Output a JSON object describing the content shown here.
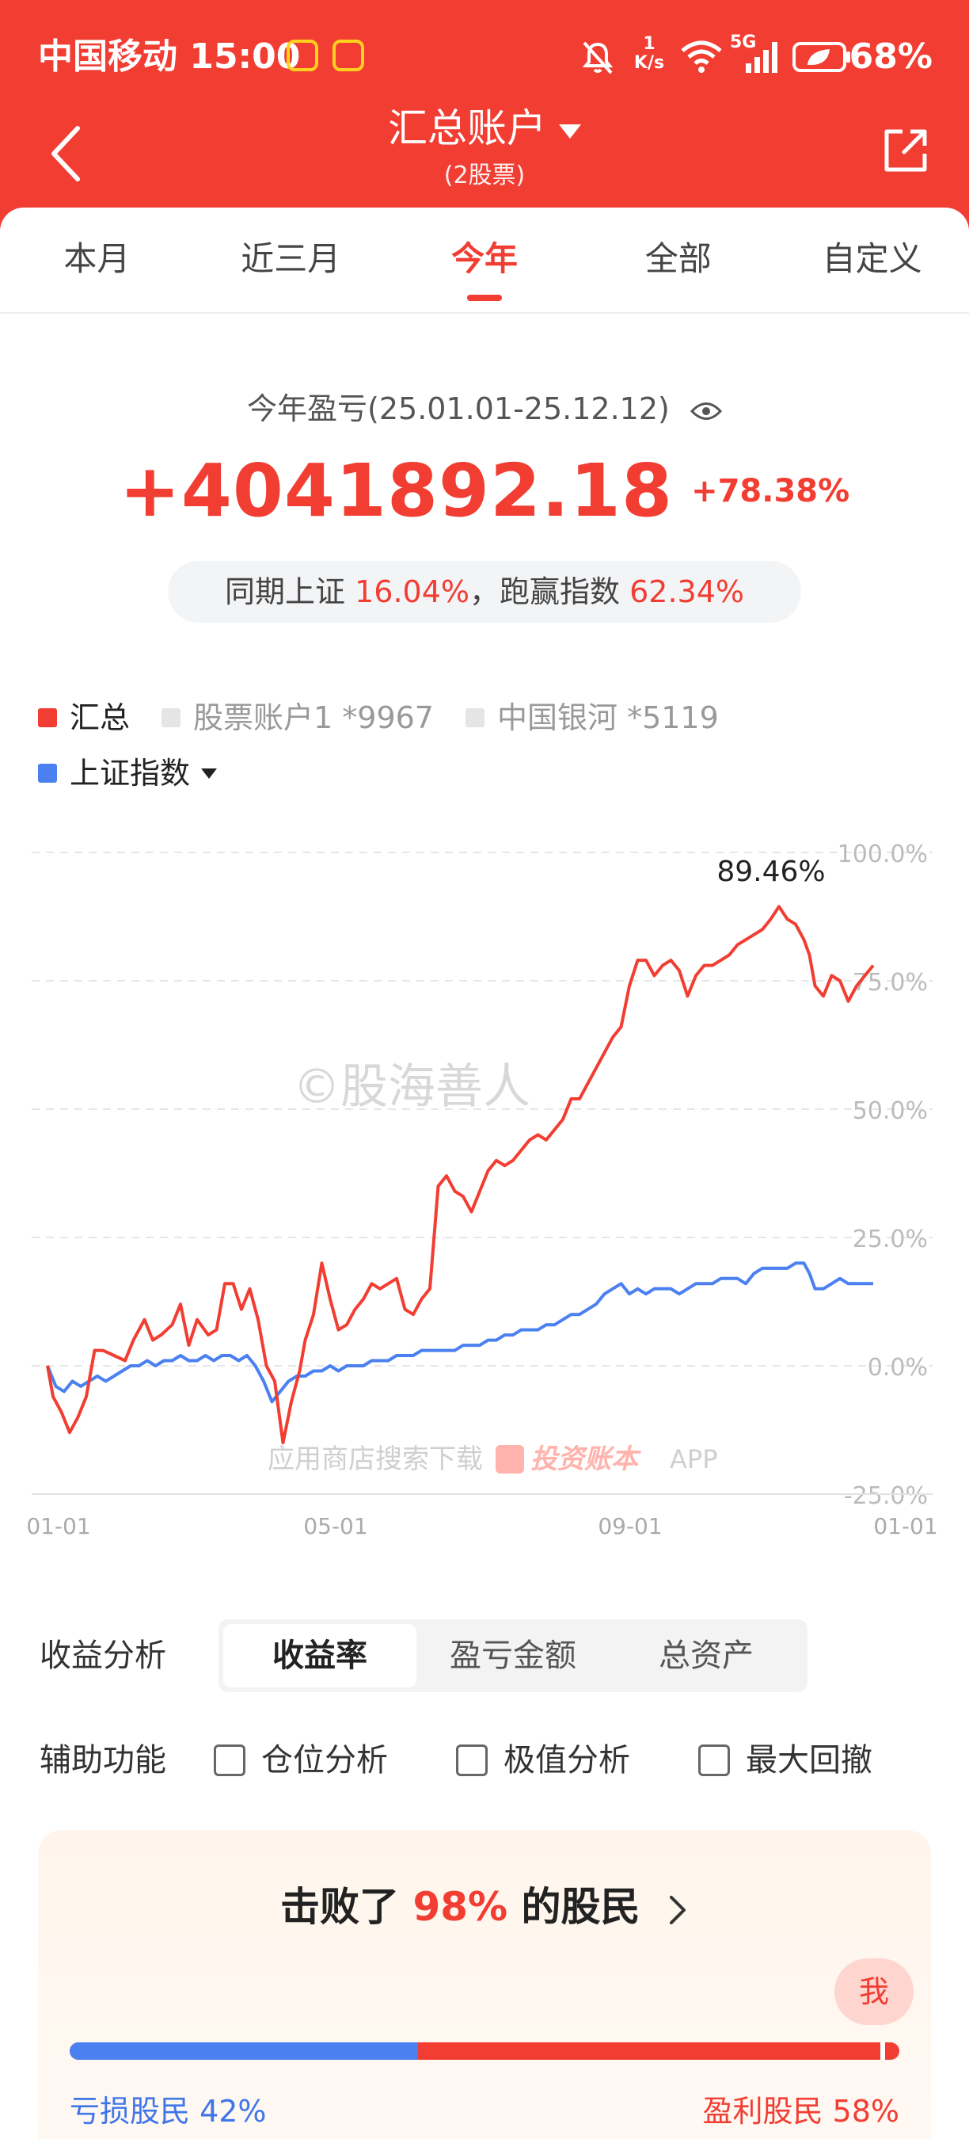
{
  "status_bar": {
    "carrier": "中国移动",
    "time": "15:00",
    "net_speed_value": "1",
    "net_speed_unit": "K/s",
    "network": "5G",
    "battery": "68%"
  },
  "header": {
    "title": "汇总账户",
    "subtitle": "(2股票)",
    "color": "#f23d32"
  },
  "tabs": [
    {
      "label": "本月",
      "active": false
    },
    {
      "label": "近三月",
      "active": false
    },
    {
      "label": "今年",
      "active": true
    },
    {
      "label": "全部",
      "active": false
    },
    {
      "label": "自定义",
      "active": false
    }
  ],
  "summary": {
    "period_label": "今年盈亏(25.01.01-25.12.12)",
    "profit_amount": "+4041892.18",
    "profit_pct": "+78.38%",
    "compare_prefix": "同期上证",
    "index_return": "16.04%",
    "compare_middle": "，跑赢指数",
    "outperform": "62.34%"
  },
  "legend": {
    "items": [
      {
        "label": "汇总",
        "color": "#f23d32",
        "active": true
      },
      {
        "label": "股票账户1 *9967",
        "color": "#e5e5e5",
        "active": false
      },
      {
        "label": "中国银河 *5119",
        "color": "#e5e5e5",
        "active": false
      }
    ],
    "index_label": "上证指数",
    "index_color": "#4a80f0"
  },
  "chart_data": {
    "type": "line",
    "y_ticks": [
      "100.0%",
      "75.0%",
      "50.0%",
      "25.0%",
      "0.0%",
      "-25.0%"
    ],
    "x_ticks": [
      "01-01",
      "05-01",
      "09-01",
      "01-01"
    ],
    "ylim": [
      -25,
      100
    ],
    "peak_label": "89.46%",
    "watermark": "©股海善人",
    "promo_text": "应用商店搜索下载",
    "promo_brand": "投资账本",
    "promo_suffix": "APP",
    "series": [
      {
        "name": "汇总",
        "color": "#f23d32",
        "points": [
          [
            0,
            0
          ],
          [
            2,
            -6
          ],
          [
            5,
            -9
          ],
          [
            8,
            -13
          ],
          [
            11,
            -10
          ],
          [
            14,
            -6
          ],
          [
            17,
            3
          ],
          [
            20,
            3
          ],
          [
            24,
            2
          ],
          [
            28,
            1
          ],
          [
            31,
            5
          ],
          [
            35,
            9
          ],
          [
            38,
            5
          ],
          [
            41,
            6
          ],
          [
            45,
            8
          ],
          [
            48,
            12
          ],
          [
            51,
            4
          ],
          [
            54,
            9
          ],
          [
            58,
            6
          ],
          [
            61,
            7
          ],
          [
            64,
            16
          ],
          [
            67,
            16
          ],
          [
            70,
            11
          ],
          [
            73,
            15
          ],
          [
            76,
            9
          ],
          [
            79,
            0
          ],
          [
            82,
            -3
          ],
          [
            85,
            -15
          ],
          [
            88,
            -7
          ],
          [
            91,
            -1
          ],
          [
            93,
            5
          ],
          [
            96,
            10
          ],
          [
            99,
            20
          ],
          [
            102,
            13
          ],
          [
            105,
            7
          ],
          [
            108,
            8
          ],
          [
            111,
            11
          ],
          [
            114,
            13
          ],
          [
            117,
            16
          ],
          [
            120,
            15
          ],
          [
            123,
            16
          ],
          [
            126,
            17
          ],
          [
            129,
            11
          ],
          [
            132,
            10
          ],
          [
            135,
            13
          ],
          [
            138,
            15
          ],
          [
            141,
            35
          ],
          [
            144,
            37
          ],
          [
            147,
            34
          ],
          [
            150,
            33
          ],
          [
            153,
            30
          ],
          [
            156,
            34
          ],
          [
            159,
            38
          ],
          [
            162,
            40
          ],
          [
            165,
            39
          ],
          [
            168,
            40
          ],
          [
            171,
            42
          ],
          [
            174,
            44
          ],
          [
            177,
            45
          ],
          [
            180,
            44
          ],
          [
            183,
            46
          ],
          [
            186,
            48
          ],
          [
            189,
            52
          ],
          [
            192,
            52
          ],
          [
            195,
            55
          ],
          [
            198,
            58
          ],
          [
            201,
            61
          ],
          [
            204,
            64
          ],
          [
            207,
            66
          ],
          [
            210,
            74
          ],
          [
            213,
            79
          ],
          [
            216,
            79
          ],
          [
            219,
            76
          ],
          [
            222,
            78
          ],
          [
            225,
            79
          ],
          [
            228,
            77
          ],
          [
            231,
            72
          ],
          [
            234,
            76
          ],
          [
            237,
            78
          ],
          [
            240,
            78
          ],
          [
            243,
            79
          ],
          [
            246,
            80
          ],
          [
            249,
            82
          ],
          [
            252,
            83
          ],
          [
            255,
            84
          ],
          [
            258,
            85
          ],
          [
            261,
            87
          ],
          [
            264,
            89.46
          ],
          [
            267,
            87
          ],
          [
            270,
            86
          ],
          [
            273,
            83
          ],
          [
            275,
            80
          ],
          [
            277,
            74
          ],
          [
            280,
            72
          ],
          [
            283,
            76
          ],
          [
            286,
            75
          ],
          [
            289,
            71
          ],
          [
            292,
            74
          ],
          [
            295,
            76
          ],
          [
            298,
            78
          ]
        ]
      },
      {
        "name": "上证指数",
        "color": "#4a80f0",
        "points": [
          [
            0,
            0
          ],
          [
            3,
            -4
          ],
          [
            6,
            -5
          ],
          [
            9,
            -3
          ],
          [
            12,
            -4
          ],
          [
            15,
            -3
          ],
          [
            18,
            -2
          ],
          [
            21,
            -3
          ],
          [
            24,
            -2
          ],
          [
            27,
            -1
          ],
          [
            30,
            0
          ],
          [
            33,
            0
          ],
          [
            36,
            1
          ],
          [
            39,
            0
          ],
          [
            42,
            1
          ],
          [
            45,
            1
          ],
          [
            48,
            2
          ],
          [
            51,
            1
          ],
          [
            54,
            1
          ],
          [
            57,
            2
          ],
          [
            60,
            1
          ],
          [
            63,
            2
          ],
          [
            66,
            2
          ],
          [
            69,
            1
          ],
          [
            72,
            2
          ],
          [
            75,
            0
          ],
          [
            78,
            -3
          ],
          [
            81,
            -7
          ],
          [
            84,
            -5
          ],
          [
            87,
            -3
          ],
          [
            90,
            -2
          ],
          [
            93,
            -2
          ],
          [
            96,
            -1
          ],
          [
            99,
            -1
          ],
          [
            102,
            0
          ],
          [
            105,
            -1
          ],
          [
            108,
            0
          ],
          [
            111,
            0
          ],
          [
            114,
            0
          ],
          [
            117,
            1
          ],
          [
            120,
            1
          ],
          [
            123,
            1
          ],
          [
            126,
            2
          ],
          [
            129,
            2
          ],
          [
            132,
            2
          ],
          [
            135,
            3
          ],
          [
            138,
            3
          ],
          [
            141,
            3
          ],
          [
            144,
            3
          ],
          [
            147,
            3
          ],
          [
            150,
            4
          ],
          [
            153,
            4
          ],
          [
            156,
            4
          ],
          [
            159,
            5
          ],
          [
            162,
            5
          ],
          [
            165,
            6
          ],
          [
            168,
            6
          ],
          [
            171,
            7
          ],
          [
            174,
            7
          ],
          [
            177,
            7
          ],
          [
            180,
            8
          ],
          [
            183,
            8
          ],
          [
            186,
            9
          ],
          [
            189,
            10
          ],
          [
            192,
            10
          ],
          [
            195,
            11
          ],
          [
            198,
            12
          ],
          [
            201,
            14
          ],
          [
            204,
            15
          ],
          [
            207,
            16
          ],
          [
            210,
            14
          ],
          [
            213,
            15
          ],
          [
            216,
            14
          ],
          [
            219,
            15
          ],
          [
            222,
            15
          ],
          [
            225,
            15
          ],
          [
            228,
            14
          ],
          [
            231,
            15
          ],
          [
            234,
            16
          ],
          [
            237,
            16
          ],
          [
            240,
            16
          ],
          [
            243,
            17
          ],
          [
            246,
            17
          ],
          [
            249,
            17
          ],
          [
            252,
            16
          ],
          [
            255,
            18
          ],
          [
            258,
            19
          ],
          [
            261,
            19
          ],
          [
            264,
            19
          ],
          [
            267,
            19
          ],
          [
            270,
            20
          ],
          [
            273,
            20
          ],
          [
            275,
            18
          ],
          [
            277,
            15
          ],
          [
            280,
            15
          ],
          [
            283,
            16
          ],
          [
            286,
            17
          ],
          [
            289,
            16
          ],
          [
            292,
            16
          ],
          [
            295,
            16
          ],
          [
            298,
            16
          ]
        ]
      }
    ]
  },
  "analysis": {
    "label": "收益分析",
    "options": [
      {
        "label": "收益率",
        "active": true
      },
      {
        "label": "盈亏金额",
        "active": false
      },
      {
        "label": "总资产",
        "active": false
      }
    ]
  },
  "aux": {
    "label": "辅助功能",
    "options": [
      "仓位分析",
      "极值分析",
      "最大回撤"
    ]
  },
  "rank": {
    "prefix": "击败了",
    "pct": "98%",
    "suffix": "的股民",
    "me_label": "我",
    "loss_label": "亏损股民 42%",
    "win_label": "盈利股民 58%",
    "loss_share": 0.42,
    "me_position": 0.98
  }
}
